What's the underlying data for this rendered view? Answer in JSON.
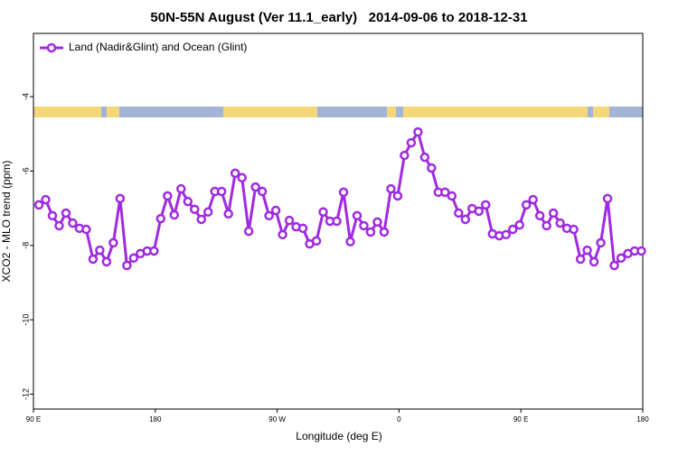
{
  "chart_data": {
    "type": "line",
    "title": "50N-55N August (Ver 11.1_early)   2014-09-06 to 2018-12-31",
    "xlabel": "Longitude (deg E)",
    "ylabel": "XCO2 - MLO trend (ppm)",
    "xlim": [
      90,
      540
    ],
    "ylim": [
      -12.4,
      -2.3
    ],
    "xticks": [
      {
        "value": 90,
        "label": "90 E"
      },
      {
        "value": 180,
        "label": "180"
      },
      {
        "value": 270,
        "label": "90 W"
      },
      {
        "value": 360,
        "label": "0"
      },
      {
        "value": 450,
        "label": "90 E"
      },
      {
        "value": 540,
        "label": "180"
      }
    ],
    "yticks": [
      -4,
      -6,
      -8,
      -10,
      -12
    ],
    "legend": "top-left",
    "x": [
      94,
      99,
      104,
      109,
      114,
      119,
      124,
      129,
      134,
      139,
      144,
      149,
      154,
      159,
      164,
      169,
      174,
      179,
      184,
      189,
      194,
      199,
      204,
      209,
      214,
      219,
      224,
      229,
      234,
      239,
      244,
      249,
      254,
      259,
      264,
      269,
      274,
      279,
      284,
      289,
      294,
      299,
      304,
      309,
      314,
      319,
      324,
      329,
      334,
      339,
      344,
      349,
      354,
      359,
      364,
      369,
      374,
      379,
      384,
      389,
      394,
      399,
      404,
      409,
      414,
      419,
      424,
      429,
      434,
      439,
      444,
      449,
      454,
      459,
      464,
      469,
      474,
      479,
      484,
      489,
      494,
      499,
      504,
      509,
      514,
      519,
      524,
      529,
      534,
      539
    ],
    "series": [
      {
        "name": "Land (Nadir&Glint) and Ocean (Glint)",
        "color": "#9f2be0",
        "values": [
          -6.91,
          -6.77,
          -7.2,
          -7.47,
          -7.13,
          -7.4,
          -7.54,
          -7.57,
          -8.37,
          -8.13,
          -8.44,
          -7.93,
          -6.74,
          -8.54,
          -8.34,
          -8.22,
          -8.15,
          -8.15,
          -7.28,
          -6.67,
          -7.18,
          -6.48,
          -6.82,
          -7.03,
          -7.3,
          -7.1,
          -6.55,
          -6.55,
          -7.15,
          -6.06,
          -6.18,
          -7.62,
          -6.43,
          -6.55,
          -7.2,
          -7.06,
          -7.71,
          -7.33,
          -7.5,
          -7.54,
          -7.96,
          -7.88,
          -7.1,
          -7.35,
          -7.35,
          -6.57,
          -7.9,
          -7.2,
          -7.47,
          -7.64,
          -7.37,
          -7.64,
          -6.48,
          -6.67,
          -5.58,
          -5.24,
          -4.95,
          -5.63,
          -5.92,
          -6.57,
          -6.57,
          -6.67,
          -7.13,
          -7.3,
          -7.01,
          -7.08,
          -6.91,
          -7.69,
          -7.74,
          -7.71,
          -7.57,
          -7.45,
          -6.91,
          -6.77,
          -7.2,
          -7.47,
          -7.13,
          -7.4,
          -7.54,
          -7.57,
          -8.37,
          -8.13,
          -8.44,
          -7.93,
          -6.74,
          -8.54,
          -8.34,
          -8.22,
          -8.15,
          -8.15
        ]
      }
    ]
  }
}
